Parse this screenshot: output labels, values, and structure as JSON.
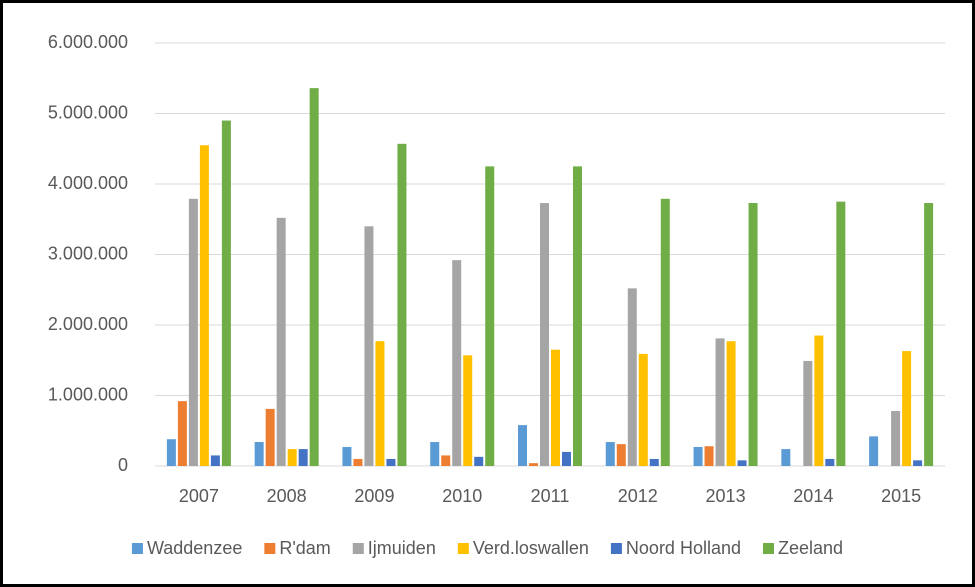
{
  "chart_data": {
    "type": "bar",
    "categories": [
      "2007",
      "2008",
      "2009",
      "2010",
      "2011",
      "2012",
      "2013",
      "2014",
      "2015"
    ],
    "series": [
      {
        "name": "Waddenzee",
        "color": "#5b9bd5",
        "values": [
          380000,
          340000,
          270000,
          340000,
          580000,
          340000,
          270000,
          240000,
          420000
        ]
      },
      {
        "name": "R'dam",
        "color": "#ed7d31",
        "values": [
          920000,
          810000,
          100000,
          150000,
          40000,
          310000,
          280000,
          0,
          0
        ]
      },
      {
        "name": "Ijmuiden",
        "color": "#a5a5a5",
        "values": [
          3790000,
          3520000,
          3400000,
          2920000,
          3730000,
          2520000,
          1810000,
          1490000,
          780000
        ]
      },
      {
        "name": "Verd.loswallen",
        "color": "#ffc000",
        "values": [
          4550000,
          240000,
          1770000,
          1570000,
          1650000,
          1590000,
          1770000,
          1850000,
          1630000
        ]
      },
      {
        "name": "Noord Holland",
        "color": "#4472c4",
        "values": [
          150000,
          240000,
          100000,
          130000,
          200000,
          100000,
          80000,
          100000,
          80000
        ]
      },
      {
        "name": "Zeeland",
        "color": "#70ad47",
        "values": [
          4900000,
          5360000,
          4570000,
          4250000,
          4250000,
          3790000,
          3730000,
          3750000,
          3730000
        ]
      }
    ],
    "ylim": [
      0,
      6000000
    ],
    "yticks": [
      0,
      {
        "value": 1000000,
        "label": "1.000.000"
      },
      {
        "value": 2000000,
        "label": "2.000.000"
      },
      {
        "value": 3000000,
        "label": "3.000.000"
      },
      {
        "value": 4000000,
        "label": "4.000.000"
      },
      {
        "value": 5000000,
        "label": "5.000.000"
      },
      {
        "value": 6000000,
        "label": "6.000.000"
      }
    ],
    "grid": true,
    "legend": "bottom"
  }
}
